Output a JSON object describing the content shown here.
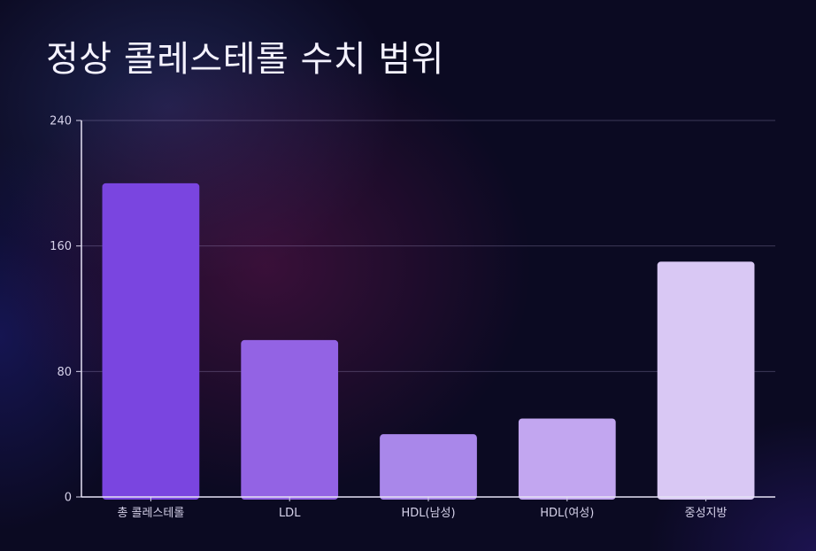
{
  "chart_data": {
    "type": "bar",
    "title": "정상 콜레스테롤 수치 범위",
    "xlabel": "",
    "ylabel": "",
    "categories": [
      "총 콜레스테롤",
      "LDL",
      "HDL(남성)",
      "HDL(여성)",
      "중성지방"
    ],
    "values": [
      200,
      100,
      40,
      50,
      150
    ],
    "ylim": [
      0,
      240
    ],
    "yticks": [
      0,
      80,
      160,
      240
    ],
    "grid": true,
    "colors": [
      "#7a45e0",
      "#9363e4",
      "#a987ea",
      "#c2a6f0",
      "#d9c8f4"
    ]
  }
}
